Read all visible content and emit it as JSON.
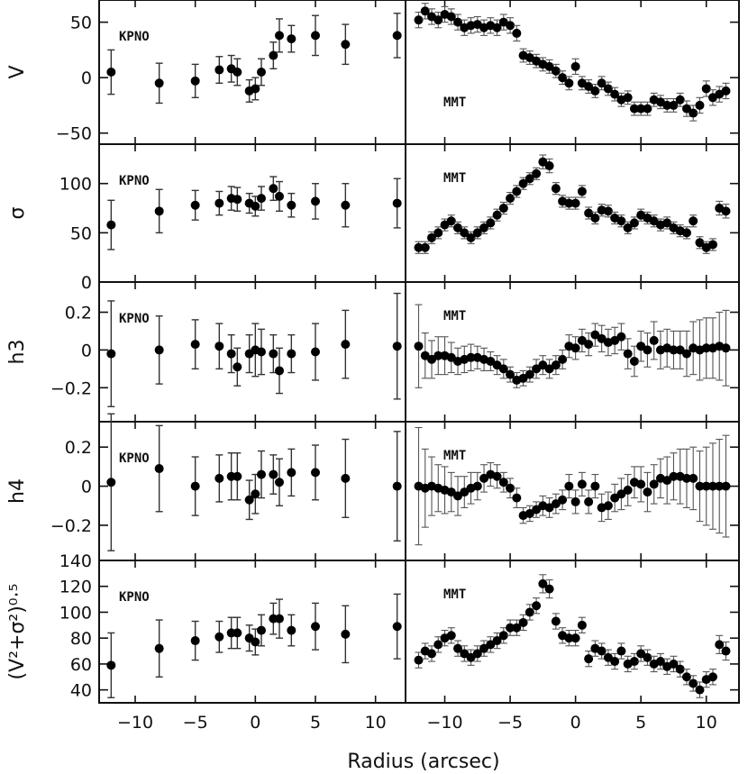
{
  "xlabel": "Radius   (arcsec)",
  "x_tick_labels": [
    "−10",
    "−5",
    "0",
    "5",
    "10"
  ],
  "chart_data": [
    {
      "type": "scatter",
      "ylabel": "V",
      "ylim": [
        -60,
        70
      ],
      "xlim": [
        -13,
        12.5
      ],
      "ytick_labels": [
        "−50",
        "0",
        "50"
      ],
      "ytick_values": [
        -50,
        0,
        50
      ],
      "left": {
        "label": "KPNO",
        "x": [
          -12,
          -8,
          -5,
          -3,
          -2,
          -1.5,
          -0.5,
          0,
          0.5,
          1.5,
          2,
          3,
          5,
          7.5,
          11.8
        ],
        "y": [
          5,
          -5,
          -3,
          7,
          8,
          5,
          -12,
          -10,
          5,
          20,
          38,
          35,
          38,
          30,
          38
        ],
        "err": [
          20,
          18,
          15,
          12,
          12,
          12,
          10,
          10,
          12,
          12,
          15,
          12,
          18,
          18,
          20
        ]
      },
      "right": {
        "label": "MMT",
        "x": [
          -12,
          -11.5,
          -11,
          -10.5,
          -10,
          -9.5,
          -9,
          -8.5,
          -8,
          -7.5,
          -7,
          -6.5,
          -6,
          -5.5,
          -5,
          -4.5,
          -4,
          -3.5,
          -3,
          -2.5,
          -2,
          -1.5,
          -1,
          -0.5,
          0,
          0.5,
          1,
          1.5,
          2,
          2.5,
          3,
          3.5,
          4,
          4.5,
          5,
          5.5,
          6,
          6.5,
          7,
          7.5,
          8,
          8.5,
          9,
          9.5,
          10,
          10.5,
          11,
          11.5
        ],
        "y": [
          52,
          60,
          55,
          52,
          57,
          55,
          50,
          45,
          47,
          48,
          45,
          47,
          45,
          50,
          47,
          40,
          20,
          18,
          15,
          12,
          10,
          6,
          0,
          -5,
          10,
          -5,
          -8,
          -12,
          -5,
          -10,
          -15,
          -20,
          -18,
          -28,
          -28,
          -28,
          -20,
          -22,
          -25,
          -25,
          -20,
          -28,
          -32,
          -25,
          -10,
          -18,
          -15,
          -12
        ],
        "err": [
          7,
          7,
          7,
          7,
          7,
          7,
          7,
          7,
          7,
          7,
          7,
          7,
          7,
          7,
          7,
          7,
          6,
          6,
          6,
          6,
          6,
          6,
          6,
          6,
          7,
          6,
          6,
          6,
          6,
          6,
          6,
          6,
          6,
          6,
          6,
          6,
          6,
          6,
          6,
          6,
          6,
          7,
          7,
          7,
          7,
          7,
          7,
          7
        ]
      }
    },
    {
      "type": "scatter",
      "ylabel": "σ",
      "ylim": [
        0,
        140
      ],
      "xlim": [
        -13,
        12.5
      ],
      "ytick_labels": [
        "0",
        "50",
        "100"
      ],
      "ytick_values": [
        0,
        50,
        100
      ],
      "left": {
        "label": "KPNO",
        "x": [
          -12,
          -8,
          -5,
          -3,
          -2,
          -1.5,
          -0.5,
          0,
          0.5,
          1.5,
          2,
          3,
          5,
          7.5,
          11.8
        ],
        "y": [
          58,
          72,
          78,
          80,
          85,
          84,
          80,
          77,
          85,
          95,
          87,
          78,
          82,
          78,
          80
        ],
        "err": [
          25,
          22,
          15,
          12,
          12,
          12,
          10,
          10,
          12,
          12,
          15,
          12,
          18,
          22,
          25
        ]
      },
      "right": {
        "label": "MMT",
        "x": [
          -12,
          -11.5,
          -11,
          -10.5,
          -10,
          -9.5,
          -9,
          -8.5,
          -8,
          -7.5,
          -7,
          -6.5,
          -6,
          -5.5,
          -5,
          -4.5,
          -4,
          -3.5,
          -3,
          -2.5,
          -2,
          -1.5,
          -1,
          -0.5,
          0,
          0.5,
          1,
          1.5,
          2,
          2.5,
          3,
          3.5,
          4,
          4.5,
          5,
          5.5,
          6,
          6.5,
          7,
          7.5,
          8,
          8.5,
          9,
          9.5,
          10,
          10.5,
          11,
          11.5
        ],
        "y": [
          35,
          35,
          45,
          50,
          58,
          62,
          55,
          50,
          45,
          50,
          55,
          60,
          68,
          75,
          85,
          92,
          100,
          105,
          110,
          122,
          118,
          95,
          82,
          80,
          80,
          92,
          70,
          65,
          73,
          72,
          65,
          62,
          55,
          60,
          68,
          65,
          62,
          58,
          60,
          55,
          52,
          50,
          62,
          40,
          35,
          38,
          75,
          72
        ],
        "err": [
          6,
          6,
          6,
          6,
          6,
          6,
          6,
          6,
          6,
          6,
          6,
          6,
          6,
          6,
          6,
          6,
          6,
          6,
          6,
          7,
          7,
          6,
          6,
          6,
          6,
          6,
          6,
          6,
          6,
          6,
          6,
          6,
          6,
          6,
          6,
          6,
          6,
          6,
          6,
          6,
          6,
          6,
          6,
          6,
          6,
          6,
          7,
          7
        ]
      }
    },
    {
      "type": "scatter",
      "ylabel": "h3",
      "ylim": [
        -0.38,
        0.36
      ],
      "xlim": [
        -13,
        12.5
      ],
      "ytick_labels": [
        "−0.2",
        "0",
        "0.2"
      ],
      "ytick_values": [
        -0.2,
        0,
        0.2
      ],
      "left": {
        "label": "KPNO",
        "x": [
          -12,
          -8,
          -5,
          -3,
          -2,
          -1.5,
          -0.5,
          0,
          0.5,
          1.5,
          2,
          3,
          5,
          7.5,
          11.8
        ],
        "y": [
          -0.02,
          0.0,
          0.03,
          0.02,
          -0.02,
          -0.09,
          -0.02,
          0.0,
          -0.01,
          -0.02,
          -0.11,
          -0.02,
          -0.01,
          0.03,
          0.02
        ],
        "err": [
          0.28,
          0.18,
          0.13,
          0.12,
          0.1,
          0.1,
          0.1,
          0.14,
          0.12,
          0.1,
          0.12,
          0.1,
          0.15,
          0.18,
          0.28
        ]
      },
      "right": {
        "label": "MMT",
        "x": [
          -12,
          -11.5,
          -11,
          -10.5,
          -10,
          -9.5,
          -9,
          -8.5,
          -8,
          -7.5,
          -7,
          -6.5,
          -6,
          -5.5,
          -5,
          -4.5,
          -4,
          -3.5,
          -3,
          -2.5,
          -2,
          -1.5,
          -1,
          -0.5,
          0,
          0.5,
          1,
          1.5,
          2,
          2.5,
          3,
          3.5,
          4,
          4.5,
          5,
          5.5,
          6,
          6.5,
          7,
          7.5,
          8,
          8.5,
          9,
          9.5,
          10,
          10.5,
          11,
          11.5
        ],
        "y": [
          0.02,
          -0.03,
          -0.05,
          -0.03,
          -0.03,
          -0.04,
          -0.06,
          -0.05,
          -0.04,
          -0.04,
          -0.05,
          -0.06,
          -0.08,
          -0.1,
          -0.13,
          -0.16,
          -0.15,
          -0.13,
          -0.1,
          -0.08,
          -0.1,
          -0.08,
          -0.05,
          0.02,
          0.01,
          0.05,
          0.03,
          0.08,
          0.06,
          0.04,
          0.05,
          0.07,
          -0.02,
          -0.06,
          0.02,
          0.0,
          0.05,
          0.0,
          0.01,
          0.0,
          0.0,
          -0.02,
          0.01,
          0.0,
          0.01,
          0.01,
          0.02,
          0.01
        ],
        "err": [
          0.22,
          0.12,
          0.1,
          0.1,
          0.1,
          0.08,
          0.07,
          0.07,
          0.07,
          0.06,
          0.06,
          0.05,
          0.05,
          0.05,
          0.04,
          0.04,
          0.04,
          0.04,
          0.05,
          0.05,
          0.05,
          0.05,
          0.05,
          0.06,
          0.06,
          0.06,
          0.06,
          0.06,
          0.07,
          0.07,
          0.07,
          0.07,
          0.08,
          0.08,
          0.08,
          0.09,
          0.1,
          0.1,
          0.1,
          0.1,
          0.1,
          0.12,
          0.14,
          0.16,
          0.16,
          0.16,
          0.18,
          0.2
        ]
      }
    },
    {
      "type": "scatter",
      "ylabel": "h4",
      "ylim": [
        -0.38,
        0.33
      ],
      "xlim": [
        -13,
        12.5
      ],
      "ytick_labels": [
        "−0.2",
        "0",
        "0.2"
      ],
      "ytick_values": [
        -0.2,
        0,
        0.2
      ],
      "left": {
        "label": "KPNO",
        "x": [
          -12,
          -8,
          -5,
          -3,
          -2,
          -1.5,
          -0.5,
          0,
          0.5,
          1.5,
          2,
          3,
          5,
          7.5,
          11.8
        ],
        "y": [
          0.02,
          0.09,
          0.0,
          0.04,
          0.05,
          0.05,
          -0.07,
          -0.04,
          0.06,
          0.06,
          0.02,
          0.07,
          0.07,
          0.04,
          0.0
        ],
        "err": [
          0.35,
          0.22,
          0.15,
          0.12,
          0.12,
          0.12,
          0.1,
          0.1,
          0.12,
          0.1,
          0.12,
          0.12,
          0.14,
          0.2,
          0.28
        ]
      },
      "right": {
        "label": "MMT",
        "x": [
          -12,
          -11.5,
          -11,
          -10.5,
          -10,
          -9.5,
          -9,
          -8.5,
          -8,
          -7.5,
          -7,
          -6.5,
          -6,
          -5.5,
          -5,
          -4.5,
          -4,
          -3.5,
          -3,
          -2.5,
          -2,
          -1.5,
          -1,
          -0.5,
          0,
          0.5,
          1,
          1.5,
          2,
          2.5,
          3,
          3.5,
          4,
          4.5,
          5,
          5.5,
          6,
          6.5,
          7,
          7.5,
          8,
          8.5,
          9,
          9.5,
          10,
          10.5,
          11,
          11.5
        ],
        "y": [
          0.0,
          -0.01,
          0.0,
          -0.01,
          -0.02,
          -0.03,
          -0.05,
          -0.03,
          -0.01,
          0.0,
          0.04,
          0.06,
          0.05,
          0.02,
          -0.01,
          -0.06,
          -0.15,
          -0.14,
          -0.12,
          -0.1,
          -0.11,
          -0.09,
          -0.07,
          0.0,
          -0.08,
          0.01,
          -0.08,
          0.0,
          -0.11,
          -0.1,
          -0.06,
          -0.04,
          -0.02,
          0.02,
          0.01,
          -0.03,
          0.01,
          0.04,
          0.03,
          0.05,
          0.05,
          0.04,
          0.04,
          0.0,
          0.0,
          0.0,
          0.0,
          0.0
        ],
        "err": [
          0.3,
          0.2,
          0.15,
          0.12,
          0.12,
          0.1,
          0.1,
          0.08,
          0.08,
          0.07,
          0.07,
          0.06,
          0.06,
          0.05,
          0.05,
          0.05,
          0.04,
          0.04,
          0.04,
          0.05,
          0.05,
          0.05,
          0.05,
          0.06,
          0.06,
          0.06,
          0.06,
          0.06,
          0.07,
          0.07,
          0.07,
          0.08,
          0.08,
          0.08,
          0.09,
          0.1,
          0.1,
          0.1,
          0.12,
          0.12,
          0.14,
          0.15,
          0.16,
          0.18,
          0.2,
          0.22,
          0.24,
          0.26
        ]
      }
    },
    {
      "type": "scatter",
      "ylabel": "(V²+σ²)⁰·⁵",
      "ylim": [
        30,
        140
      ],
      "xlim": [
        -13,
        12.5
      ],
      "ytick_labels": [
        "40",
        "60",
        "80",
        "100",
        "120",
        "140"
      ],
      "ytick_values": [
        40,
        60,
        80,
        100,
        120,
        140
      ],
      "left": {
        "label": "KPNO",
        "x": [
          -12,
          -8,
          -5,
          -3,
          -2,
          -1.5,
          -0.5,
          0,
          0.5,
          1.5,
          2,
          3,
          5,
          7.5,
          11.8
        ],
        "y": [
          59,
          72,
          78,
          81,
          84,
          84,
          80,
          77,
          86,
          95,
          95,
          86,
          89,
          83,
          89
        ],
        "err": [
          25,
          22,
          15,
          12,
          12,
          12,
          10,
          10,
          12,
          12,
          15,
          12,
          18,
          22,
          25
        ]
      },
      "right": {
        "label": "MMT",
        "x": [
          -12,
          -11.5,
          -11,
          -10.5,
          -10,
          -9.5,
          -9,
          -8.5,
          -8,
          -7.5,
          -7,
          -6.5,
          -6,
          -5.5,
          -5,
          -4.5,
          -4,
          -3.5,
          -3,
          -2.5,
          -2,
          -1.5,
          -1,
          -0.5,
          0,
          0.5,
          1,
          1.5,
          2,
          2.5,
          3,
          3.5,
          4,
          4.5,
          5,
          5.5,
          6,
          6.5,
          7,
          7.5,
          8,
          8.5,
          9,
          9.5,
          10,
          10.5,
          11,
          11.5
        ],
        "y": [
          63,
          70,
          68,
          75,
          80,
          82,
          72,
          68,
          65,
          68,
          72,
          75,
          78,
          82,
          88,
          88,
          92,
          100,
          105,
          122,
          118,
          93,
          82,
          80,
          80,
          90,
          64,
          72,
          70,
          65,
          62,
          70,
          60,
          62,
          68,
          65,
          60,
          62,
          58,
          60,
          56,
          50,
          45,
          40,
          48,
          50,
          75,
          70
        ],
        "err": [
          6,
          6,
          6,
          6,
          6,
          6,
          6,
          6,
          6,
          6,
          6,
          6,
          6,
          6,
          6,
          6,
          6,
          6,
          6,
          7,
          7,
          6,
          6,
          6,
          6,
          6,
          6,
          6,
          6,
          6,
          6,
          6,
          6,
          6,
          6,
          6,
          6,
          6,
          6,
          6,
          6,
          6,
          6,
          6,
          6,
          6,
          7,
          7
        ]
      }
    }
  ]
}
